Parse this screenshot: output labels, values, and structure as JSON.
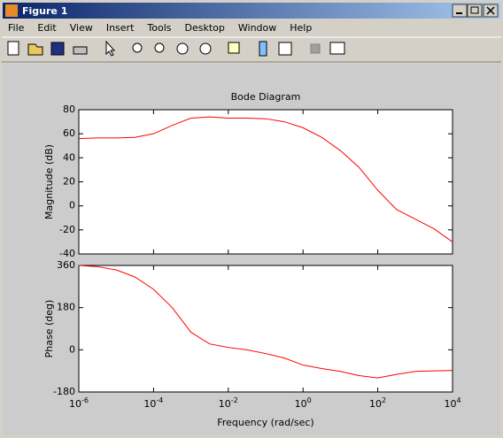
{
  "window": {
    "title": "Figure 1",
    "menu": [
      "File",
      "Edit",
      "View",
      "Insert",
      "Tools",
      "Desktop",
      "Window",
      "Help"
    ]
  },
  "chart_data": [
    {
      "type": "line",
      "title": "Bode Diagram",
      "ylabel": "Magnitude (dB)",
      "xscale": "log",
      "x": [
        1e-06,
        3.162e-06,
        1e-05,
        3.162e-05,
        0.0001,
        0.0003162,
        0.001,
        0.003162,
        0.01,
        0.03162,
        0.1,
        0.3162,
        1,
        3.162,
        10,
        31.62,
        100,
        316.2,
        1000,
        3162,
        10000
      ],
      "series": [
        {
          "color": "#ff0000",
          "values": [
            56,
            56.5,
            56.5,
            57,
            60,
            67,
            73,
            74,
            73,
            73,
            72.5,
            70,
            65,
            57,
            46,
            32,
            13,
            -3,
            -11,
            -19,
            -30
          ]
        }
      ],
      "xlim": [
        1e-06,
        10000
      ],
      "ylim": [
        -40,
        80
      ],
      "yticks": [
        -40,
        -20,
        0,
        20,
        40,
        60,
        80
      ]
    },
    {
      "type": "line",
      "xlabel": "Frequency  (rad/sec)",
      "ylabel": "Phase (deg)",
      "xscale": "log",
      "x": [
        1e-06,
        3.162e-06,
        1e-05,
        3.162e-05,
        0.0001,
        0.0003162,
        0.001,
        0.003162,
        0.01,
        0.03162,
        0.1,
        0.3162,
        1,
        3.162,
        10,
        31.62,
        100,
        316.2,
        1000,
        3162,
        10000
      ],
      "series": [
        {
          "color": "#ff0000",
          "values": [
            360,
            355,
            341,
            311,
            258,
            180,
            75,
            25,
            10,
            0,
            -16,
            -35,
            -65,
            -80,
            -92,
            -110,
            -120,
            -105,
            -92,
            -90,
            -88
          ]
        }
      ],
      "xlim": [
        1e-06,
        10000
      ],
      "ylim": [
        -180,
        360
      ],
      "yticks": [
        -180,
        0,
        180,
        360
      ],
      "xticks": [
        {
          "value": 1e-06,
          "label": "10-6"
        },
        {
          "value": 0.0001,
          "label": "10-4"
        },
        {
          "value": 0.01,
          "label": "10-2"
        },
        {
          "value": 1,
          "label": "100"
        },
        {
          "value": 100,
          "label": "102"
        },
        {
          "value": 10000,
          "label": "104"
        }
      ]
    }
  ]
}
